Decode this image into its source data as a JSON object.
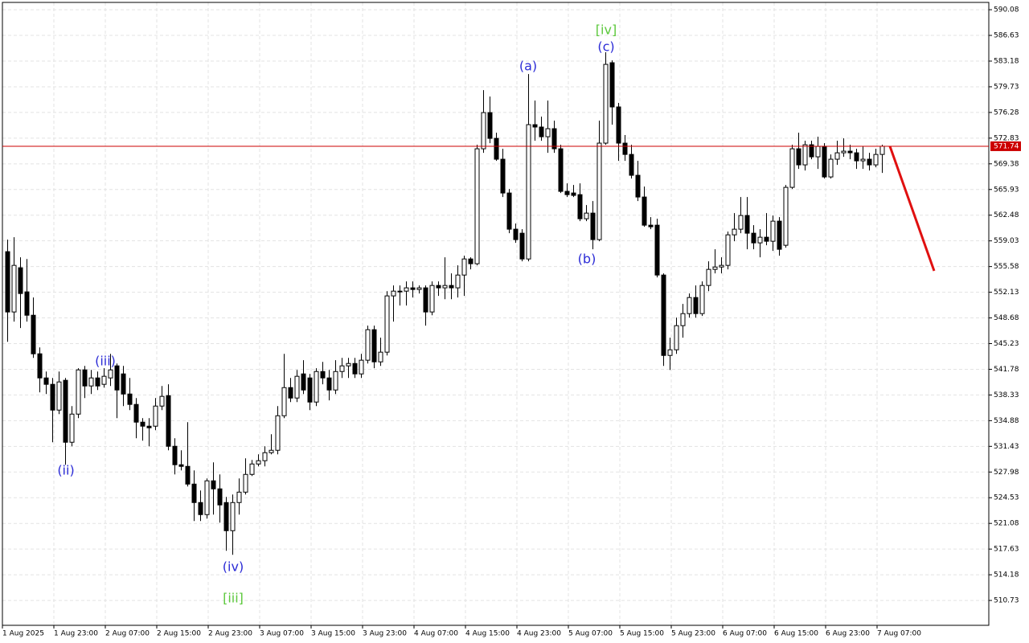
{
  "chart_data": {
    "type": "candlestick",
    "categories": [
      "1 Aug 2025",
      null,
      null,
      null,
      null,
      null,
      null,
      null,
      "1 Aug 23:00",
      null,
      null,
      null,
      null,
      null,
      null,
      null,
      "2 Aug 07:00",
      null,
      null,
      null,
      null,
      null,
      null,
      null,
      "2 Aug 15:00",
      null,
      null,
      null,
      null,
      null,
      null,
      null,
      "2 Aug 23:00",
      null,
      null,
      null,
      null,
      null,
      null,
      null,
      "3 Aug 07:00",
      null,
      null,
      null,
      null,
      null,
      null,
      null,
      "3 Aug 15:00",
      null,
      null,
      null,
      null,
      null,
      null,
      null,
      "3 Aug 23:00",
      null,
      null,
      null,
      null,
      null,
      null,
      null,
      "4 Aug 07:00",
      null,
      null,
      null,
      null,
      null,
      null,
      null,
      "4 Aug 15:00",
      null,
      null,
      null,
      null,
      null,
      null,
      null,
      "4 Aug 23:00",
      null,
      null,
      null,
      null,
      null,
      null,
      null,
      "5 Aug 07:00",
      null,
      null,
      null,
      null,
      null,
      null,
      null,
      "5 Aug 15:00",
      null,
      null,
      null,
      null,
      null,
      null,
      null,
      "5 Aug 23:00",
      null,
      null,
      null,
      null,
      null,
      null,
      null,
      "6 Aug 07:00",
      null,
      null,
      null,
      null,
      null,
      null,
      null,
      "6 Aug 15:00",
      null,
      null,
      null,
      null,
      null,
      null,
      null,
      "6 Aug 23:00",
      null,
      null,
      null,
      null,
      null,
      null,
      null,
      "7 Aug 07:00"
    ],
    "open": [
      557.58,
      549.48,
      555.42,
      552.18,
      549.04,
      543.86,
      540.62,
      539.76,
      536.3,
      540.3,
      531.98,
      535.76,
      541.7,
      539.54,
      540.62,
      539.76,
      540.62,
      542.24,
      541.16,
      538.46,
      537.06,
      534.68,
      534.14,
      534.14,
      536.84,
      538.24,
      531.44,
      528.96,
      528.74,
      526.36,
      523.88,
      522.26,
      526.8,
      525.72,
      523.88,
      520.1,
      523.88,
      525.28,
      527.66,
      529.06,
      529.5,
      530.58,
      530.9,
      535.54,
      539.32,
      537.92,
      541.16,
      540.62,
      537.38,
      541.48,
      540.62,
      539.0,
      541.48,
      542.24,
      542.56,
      541.16,
      543.0,
      547.1,
      542.78,
      544.08,
      551.64,
      552.28,
      552.28,
      552.72,
      552.5,
      552.72,
      549.48,
      553.04,
      552.72,
      553.04,
      552.72,
      554.44,
      556.6,
      555.96,
      571.4,
      576.26,
      572.8,
      570.0,
      565.46,
      560.6,
      560.06,
      556.6,
      574.64,
      574.32,
      573.02,
      574.1,
      571.4,
      565.68,
      565.46,
      565.24,
      562.0,
      562.76,
      559.2,
      572.16,
      582.96,
      577.02,
      572.16,
      570.64,
      567.84,
      564.92,
      561.14,
      561.14,
      554.44,
      543.64,
      544.4,
      547.64,
      549.26,
      551.42,
      549.26,
      553.04,
      555.2,
      555.52,
      555.74,
      559.84,
      560.6,
      562.44,
      560.06,
      558.76,
      559.52,
      558.98,
      561.68,
      558.44,
      566.22,
      571.4,
      569.24,
      571.94,
      570.32,
      571.72,
      567.62,
      570.0,
      570.86,
      571.08,
      570.86,
      569.78,
      570.0,
      569.24,
      570.64
    ],
    "high": [
      559.2,
      559.52,
      556.82,
      556.6,
      551.42,
      544.72,
      541.48,
      540.62,
      541.48,
      540.62,
      536.84,
      541.92,
      542.24,
      541.7,
      541.48,
      541.92,
      543.86,
      542.56,
      542.24,
      540.62,
      537.92,
      535.22,
      535.22,
      537.92,
      539.54,
      539.76,
      532.52,
      530.9,
      534.68,
      528.2,
      525.5,
      527.12,
      529.28,
      527.66,
      524.64,
      524.96,
      527.12,
      529.82,
      529.6,
      530.36,
      531.44,
      533.06,
      536.84,
      543.86,
      540.62,
      541.7,
      543.0,
      541.16,
      541.92,
      542.78,
      541.7,
      543.0,
      543.32,
      543.32,
      543.32,
      543.86,
      547.64,
      547.64,
      546.02,
      552.28,
      553.04,
      553.04,
      553.58,
      553.58,
      553.04,
      553.04,
      553.58,
      553.58,
      556.82,
      554.66,
      555.74,
      557.04,
      556.82,
      571.94,
      579.28,
      578.42,
      573.56,
      571.4,
      566.0,
      561.36,
      560.6,
      581.44,
      577.88,
      575.72,
      577.88,
      575.18,
      571.94,
      566.76,
      566.54,
      566.76,
      563.84,
      564.38,
      575.18,
      584.36,
      583.28,
      577.56,
      573.24,
      571.94,
      569.78,
      566.32,
      562.22,
      562.0,
      554.66,
      546.02,
      548.72,
      550.56,
      551.96,
      553.04,
      553.58,
      556.28,
      557.9,
      556.82,
      560.28,
      562.76,
      564.92,
      564.92,
      561.14,
      560.6,
      562.76,
      562.44,
      562.22,
      566.54,
      571.94,
      573.56,
      572.48,
      572.48,
      573.02,
      572.16,
      570.64,
      572.48,
      572.8,
      571.94,
      571.4,
      571.72,
      570.86,
      571.4,
      571.94
    ],
    "low": [
      545.48,
      548.18,
      547.32,
      548.18,
      543.32,
      538.68,
      538.46,
      531.98,
      535.76,
      528.96,
      531.44,
      535.22,
      537.92,
      538.46,
      539.0,
      539.32,
      539.54,
      535.22,
      536.84,
      536.3,
      532.52,
      532.2,
      531.44,
      533.6,
      536.3,
      530.9,
      527.66,
      528.2,
      526.04,
      521.4,
      521.4,
      521.72,
      522.26,
      521.18,
      517.4,
      516.86,
      522.26,
      524.96,
      527.44,
      528.74,
      528.74,
      530.36,
      530.36,
      535.22,
      537.38,
      537.38,
      538.46,
      536.3,
      536.84,
      539.76,
      537.6,
      538.46,
      540.62,
      540.62,
      540.62,
      540.62,
      542.56,
      541.92,
      542.24,
      543.64,
      548.18,
      550.34,
      550.34,
      551.42,
      551.96,
      547.64,
      549.04,
      551.64,
      551.2,
      551.2,
      551.42,
      551.64,
      555.2,
      555.74,
      570.86,
      572.16,
      569.78,
      564.92,
      560.06,
      558.76,
      556.28,
      556.28,
      572.48,
      572.48,
      570.86,
      570.86,
      565.46,
      564.92,
      564.92,
      561.68,
      561.68,
      557.9,
      558.98,
      571.94,
      574.64,
      569.78,
      569.78,
      567.4,
      564.38,
      560.92,
      560.6,
      554.12,
      542.24,
      541.7,
      543.86,
      546.02,
      548.72,
      548.72,
      548.94,
      552.28,
      554.66,
      554.66,
      555.2,
      558.98,
      560.06,
      557.9,
      557.9,
      556.82,
      558.44,
      557.68,
      557.04,
      558.12,
      566.0,
      568.7,
      568.48,
      570.0,
      568.7,
      567.4,
      567.4,
      569.24,
      570.32,
      570.0,
      568.7,
      568.7,
      568.48,
      568.92,
      568.16
    ],
    "close": [
      549.48,
      555.74,
      551.96,
      549.04,
      543.86,
      540.62,
      539.76,
      536.3,
      540.08,
      531.98,
      535.76,
      541.7,
      539.54,
      540.62,
      539.54,
      540.84,
      541.7,
      539.0,
      538.46,
      537.06,
      534.68,
      534.14,
      533.92,
      536.84,
      538.14,
      531.44,
      528.96,
      528.74,
      526.36,
      523.88,
      522.26,
      526.8,
      525.72,
      523.56,
      520.1,
      523.88,
      525.28,
      527.66,
      529.06,
      529.5,
      530.58,
      530.9,
      535.54,
      539.32,
      537.92,
      540.84,
      539.0,
      537.38,
      541.48,
      540.62,
      539.0,
      541.48,
      542.24,
      542.56,
      541.16,
      543.0,
      547.1,
      542.78,
      544.08,
      551.64,
      552.28,
      552.28,
      552.72,
      552.5,
      552.72,
      549.48,
      553.04,
      552.72,
      553.04,
      552.72,
      554.44,
      556.6,
      555.96,
      571.4,
      576.26,
      572.8,
      570.0,
      565.46,
      560.6,
      559.2,
      556.6,
      574.64,
      574.32,
      573.02,
      574.1,
      571.4,
      565.68,
      565.24,
      565.14,
      562.0,
      562.76,
      559.2,
      572.16,
      582.74,
      577.02,
      572.16,
      570.64,
      567.84,
      564.92,
      561.14,
      560.92,
      554.44,
      543.64,
      544.4,
      547.64,
      549.26,
      551.42,
      549.26,
      553.04,
      555.2,
      555.52,
      555.74,
      559.84,
      560.6,
      562.44,
      560.06,
      558.76,
      559.52,
      558.98,
      561.68,
      557.9,
      566.22,
      571.4,
      569.24,
      571.94,
      570.32,
      571.72,
      567.62,
      570.0,
      570.86,
      571.08,
      570.86,
      569.78,
      570.0,
      569.24,
      570.64,
      571.74
    ],
    "up_color": "#ffffff",
    "down_color": "#000000",
    "ylim": [
      507.39,
      591.06
    ],
    "yticks": [
      590.08,
      586.63,
      583.18,
      579.73,
      576.28,
      572.83,
      569.38,
      565.93,
      562.48,
      559.03,
      555.58,
      552.13,
      548.68,
      545.23,
      541.78,
      538.33,
      534.88,
      531.43,
      527.98,
      524.53,
      521.08,
      517.63,
      514.18,
      510.73
    ],
    "grid": true,
    "current_price": 571.74,
    "current_price_color": "#cc0000",
    "annotations": [
      {
        "text": "(ii)",
        "color": "#2b2bd6"
      },
      {
        "text": "(iii)",
        "color": "#2b2bd6"
      },
      {
        "text": "(iv)",
        "color": "#2b2bd6"
      },
      {
        "text": "[iii]",
        "color": "#5cc83c"
      },
      {
        "text": "(a)",
        "color": "#2b2bd6"
      },
      {
        "text": "(b)",
        "color": "#2b2bd6"
      },
      {
        "text": "(c)",
        "color": "#2b2bd6"
      },
      {
        "text": "[iv]",
        "color": "#5cc83c"
      }
    ]
  }
}
